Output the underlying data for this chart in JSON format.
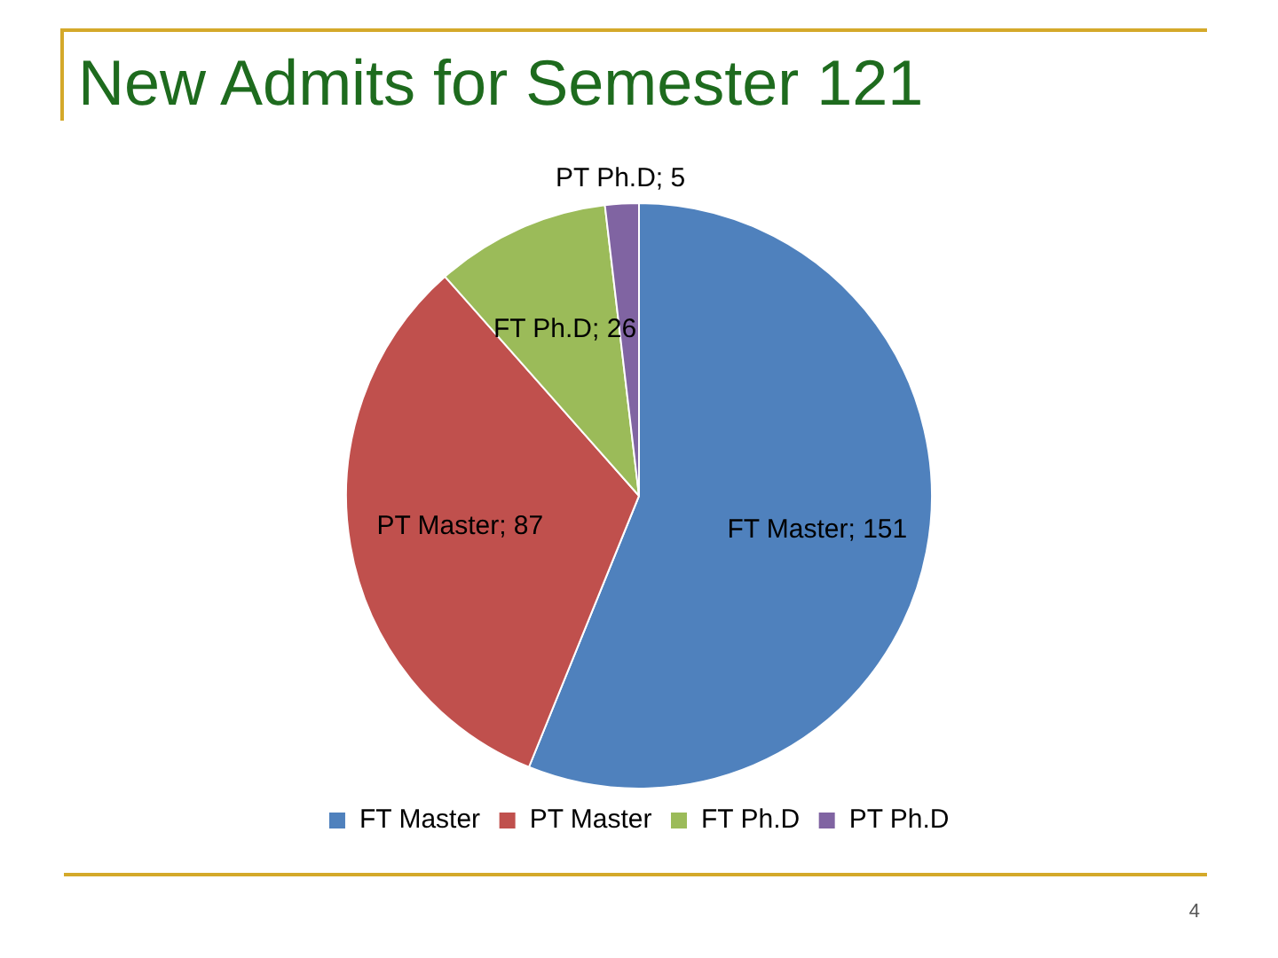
{
  "chart_data": {
    "type": "pie",
    "title": "New Admits for Semester 121",
    "categories": [
      "FT Master",
      "PT Master",
      "FT Ph.D",
      "PT Ph.D"
    ],
    "values": [
      151,
      87,
      26,
      5
    ],
    "colors": [
      "#4f81bd",
      "#c0504d",
      "#9bbb59",
      "#8064a2"
    ],
    "value_labels": [
      "FT Master; 151",
      "PT Master; 87",
      "FT Ph.D; 26",
      "PT Ph.D; 5"
    ],
    "legend": "bottom",
    "annotations": [
      "4"
    ]
  }
}
